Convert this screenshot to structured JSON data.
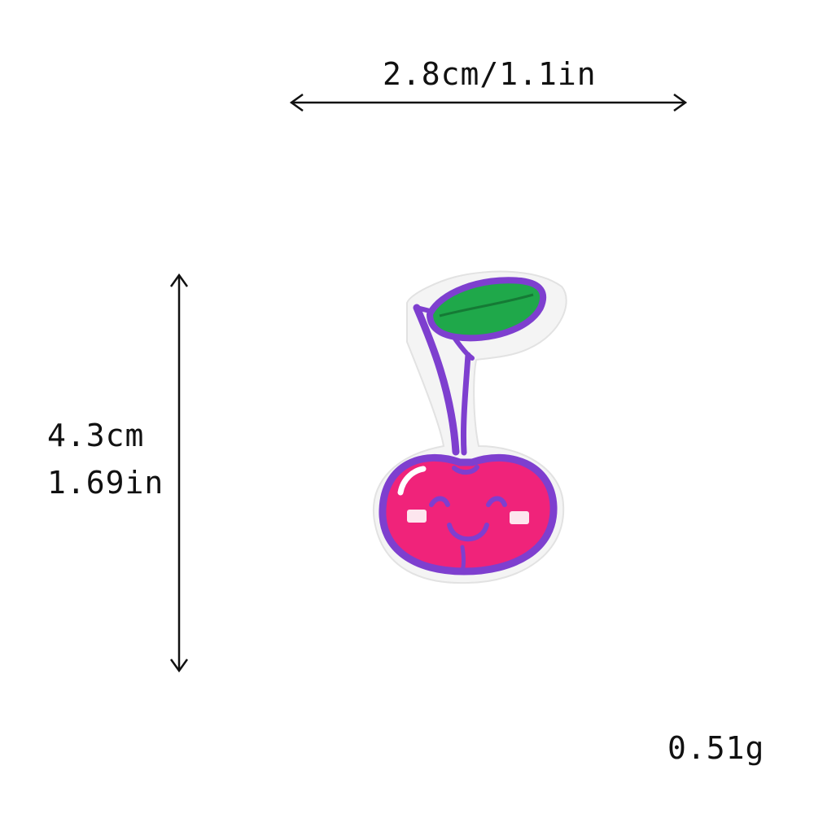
{
  "dimensions": {
    "width_label": "2.8cm/1.1in",
    "height_label_cm": "4.3cm",
    "height_label_in": "1.69in",
    "weight_label": "0.51g"
  },
  "product": {
    "icon": "cherry-patch-icon",
    "colors": {
      "cherry": "#f0237a",
      "outline": "#7e3fcf",
      "leaf": "#1fa84a",
      "backing": "#f4f4f4"
    }
  }
}
